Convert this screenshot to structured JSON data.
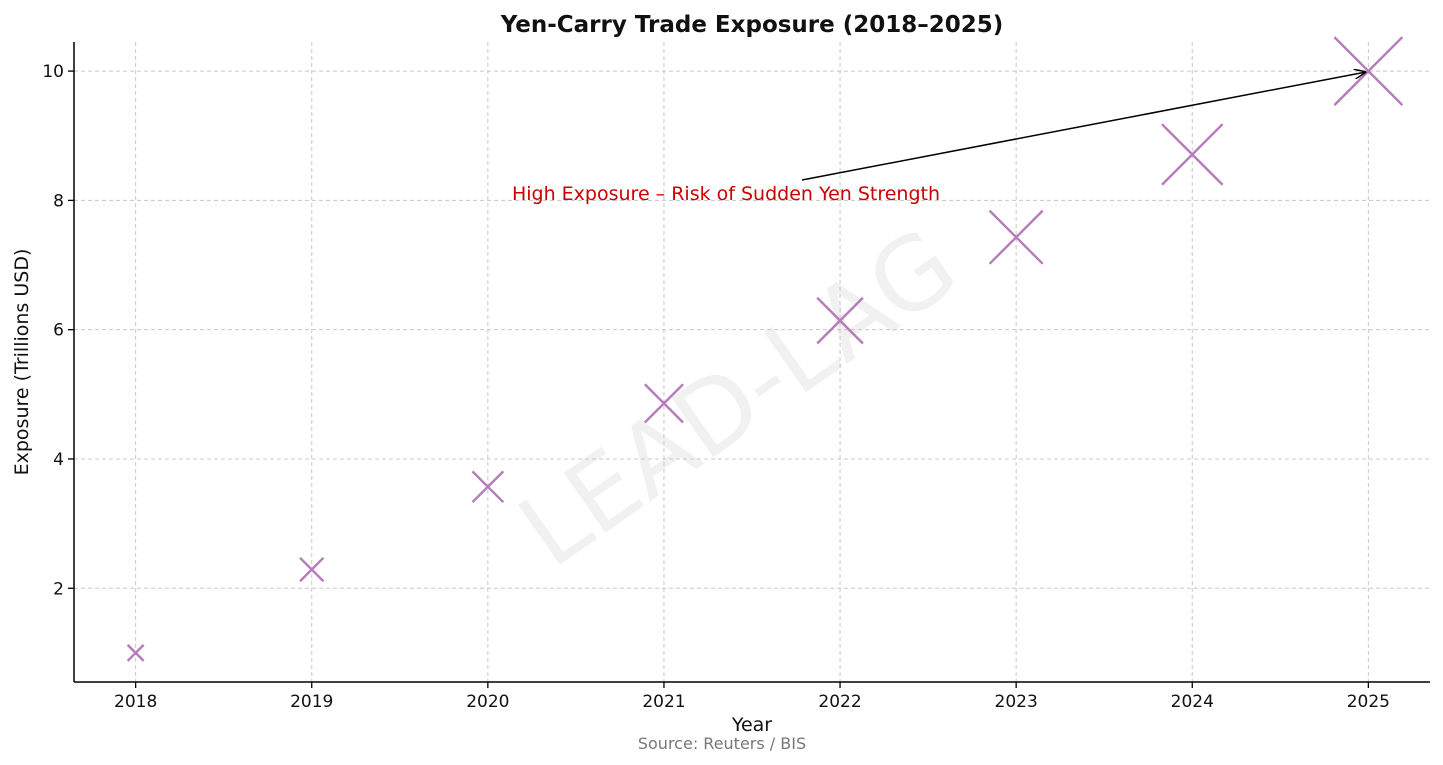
{
  "chart_data": {
    "type": "scatter",
    "title": "Yen-Carry Trade Exposure (2018–2025)",
    "xlabel": "Year",
    "ylabel": "Exposure (Trillions USD)",
    "x": [
      2018,
      2019,
      2020,
      2021,
      2022,
      2023,
      2024,
      2025
    ],
    "x_ticks": [
      "2018",
      "2019",
      "2020",
      "2021",
      "2022",
      "2023",
      "2024",
      "2025"
    ],
    "y": [
      1.0,
      2.29,
      3.57,
      4.86,
      6.14,
      7.43,
      8.71,
      10.0
    ],
    "y_ticks": [
      "2",
      "4",
      "6",
      "8",
      "10"
    ],
    "xlim": [
      2017.65,
      2025.35
    ],
    "ylim": [
      0.55,
      10.45
    ],
    "grid": true,
    "marker": "x",
    "marker_color": "#b77bbc",
    "annotation": {
      "text": "High Exposure – Risk of Sudden Yen Strength",
      "color": "#cc0000",
      "points_to_x": 2025,
      "points_to_y": 10.0
    },
    "source": "Source: Reuters / BIS",
    "watermark": "LEAD-LAG"
  }
}
